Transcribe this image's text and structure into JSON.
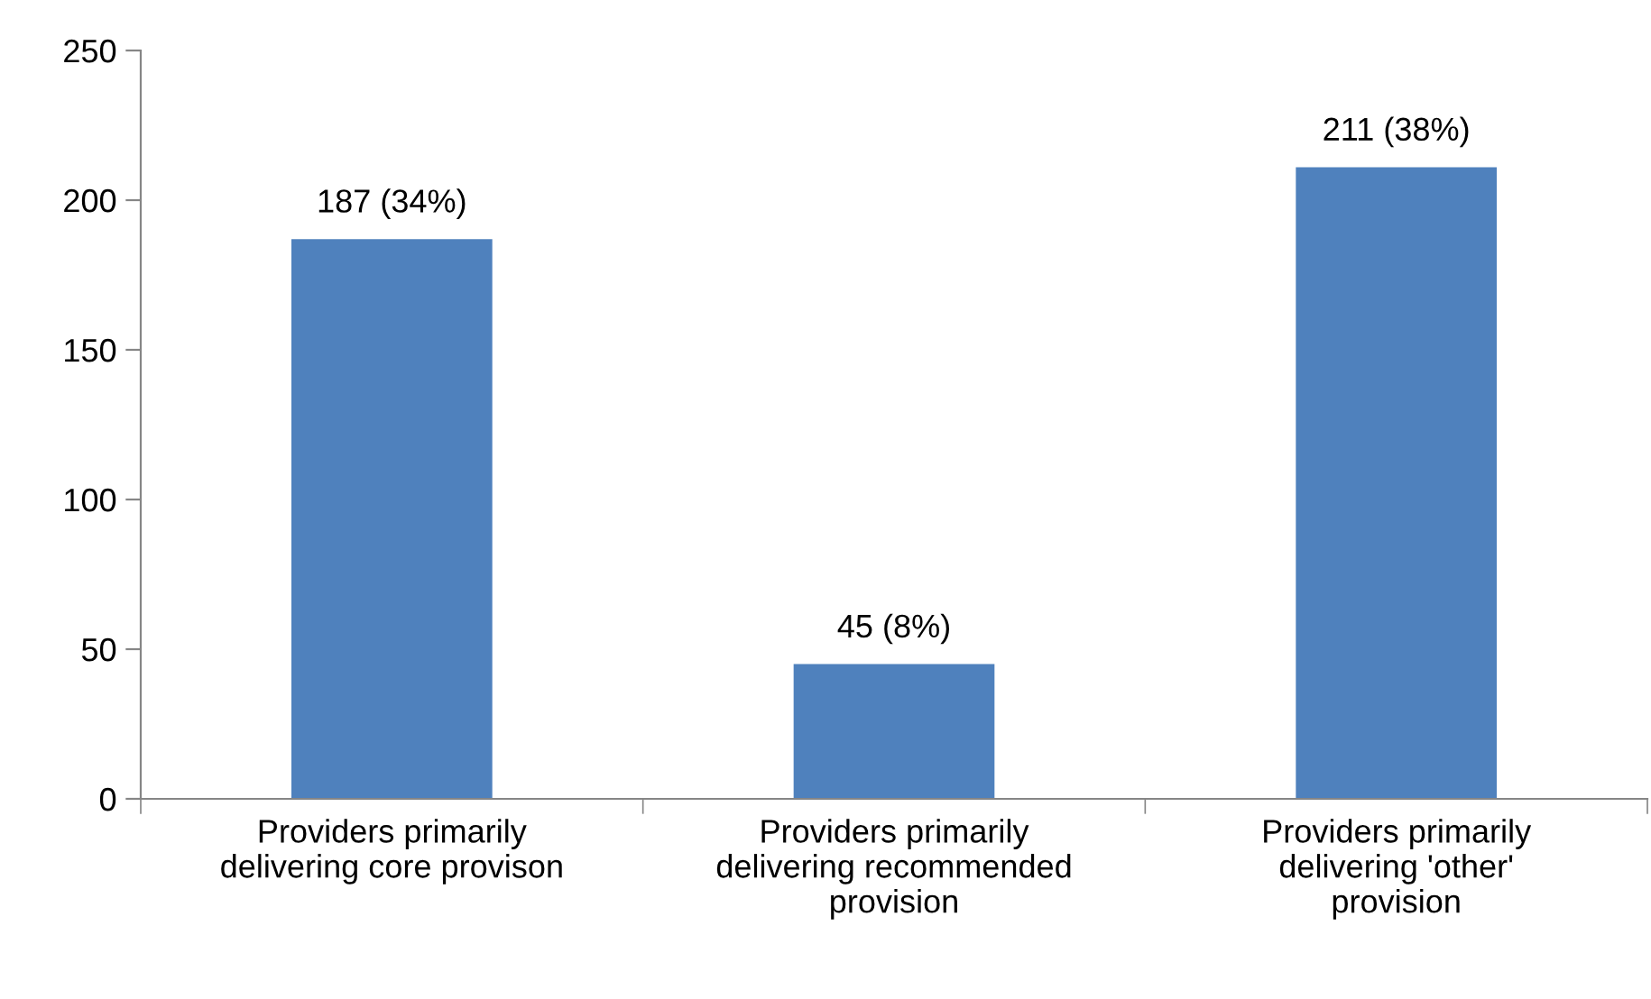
{
  "chart_data": {
    "type": "bar",
    "categories": [
      "Providers primarily\ndelivering core provison",
      "Providers primarily\ndelivering recommended\nprovision",
      "Providers primarily\ndelivering 'other'\nprovision"
    ],
    "values": [
      187,
      45,
      211
    ],
    "value_labels": [
      "187 (34%)",
      "45 (8%)",
      "211 (38%)"
    ],
    "color": "#4f81bd",
    "ylim": [
      0,
      250
    ],
    "yticks": [
      0,
      50,
      100,
      150,
      200,
      250
    ],
    "grid": false
  }
}
